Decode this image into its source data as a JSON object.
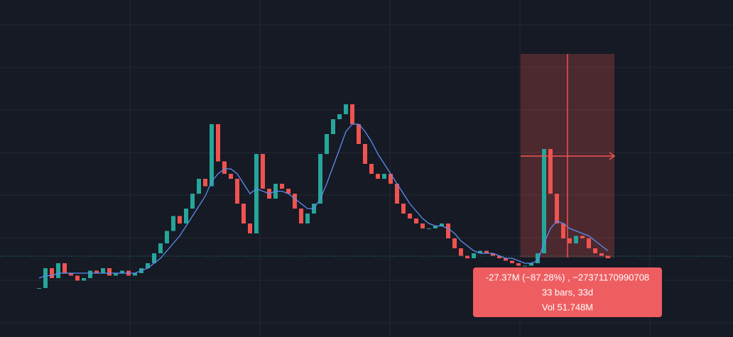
{
  "chart_data": {
    "type": "candlestick",
    "ylim": [
      0,
      100
    ],
    "up_color": "#26a69a",
    "down_color": "#ef5350",
    "series": [
      {
        "color": "#ef5350",
        "values": [
          4,
          12,
          8,
          14,
          10,
          9,
          7,
          8,
          11,
          10,
          12,
          9,
          10,
          11,
          9,
          10,
          12,
          14,
          18,
          22,
          27,
          33,
          30,
          36,
          42,
          48,
          45,
          70,
          55,
          50,
          48,
          38,
          30,
          26,
          58,
          44,
          40,
          46,
          44,
          42,
          36,
          30,
          34,
          38,
          58,
          66,
          72,
          74,
          78,
          70,
          62,
          54,
          50,
          48,
          50,
          46,
          38,
          34,
          32,
          30,
          28,
          28,
          29,
          30,
          24,
          20,
          17,
          16,
          18,
          19,
          18,
          17,
          16,
          15,
          14,
          13,
          13,
          14,
          18,
          60,
          42,
          30,
          24,
          22,
          25,
          24,
          20,
          18,
          17,
          16
        ]
      },
      {
        "color": "#5b8def",
        "values": [
          8,
          9,
          9,
          10,
          10,
          10,
          10,
          10,
          10,
          10,
          10,
          10,
          10,
          10,
          10,
          10,
          11,
          12,
          14,
          16,
          19,
          22,
          25,
          29,
          33,
          37,
          41,
          47,
          50,
          52,
          52,
          50,
          46,
          42,
          44,
          43,
          42,
          43,
          43,
          42,
          40,
          38,
          36,
          36,
          40,
          46,
          53,
          60,
          67,
          70,
          70,
          67,
          63,
          58,
          54,
          50,
          46,
          42,
          38,
          35,
          32,
          30,
          29,
          29,
          28,
          26,
          23,
          21,
          19,
          18,
          18,
          18,
          17,
          16,
          16,
          15,
          14,
          14,
          15,
          22,
          28,
          31,
          30,
          28,
          27,
          26,
          25,
          23,
          21,
          19
        ]
      }
    ],
    "annotations": [
      "-27.37M (−87.28%) , −27371170990708",
      "33 bars, 33d",
      "Vol 51.748M"
    ]
  }
}
